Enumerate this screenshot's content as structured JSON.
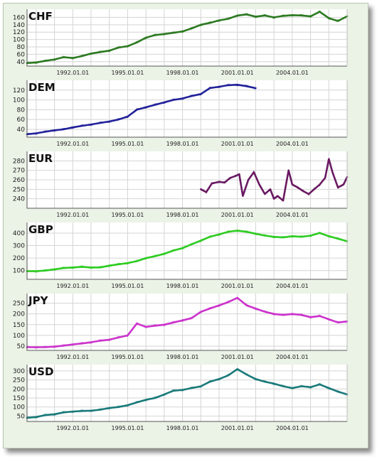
{
  "chart_data": [
    {
      "type": "line",
      "title": "CHF",
      "color": "#2d7a22",
      "x_ticks": [
        "1992.01.01",
        "1995.01.01",
        "1998.01.01",
        "2001.01.01",
        "2004.01.01"
      ],
      "y_ticks": [
        40,
        60,
        80,
        100,
        120,
        140,
        160
      ],
      "ylim": [
        28,
        182
      ],
      "xlim": [
        1989.5,
        2007.0
      ],
      "grid": true,
      "series": [
        {
          "x": [
            1989.5,
            1990.0,
            1990.5,
            1991.0,
            1991.5,
            1992.0,
            1992.5,
            1993.0,
            1993.5,
            1994.0,
            1994.5,
            1995.0,
            1995.5,
            1996.0,
            1996.5,
            1997.0,
            1997.5,
            1998.0,
            1998.5,
            1999.0,
            1999.5,
            2000.0,
            2000.5,
            2001.0,
            2001.5,
            2002.0,
            2002.5,
            2003.0,
            2003.5,
            2004.0,
            2004.5,
            2005.0,
            2005.5,
            2006.0,
            2006.5,
            2007.0
          ],
          "y": [
            36,
            38,
            42,
            46,
            52,
            50,
            55,
            62,
            66,
            70,
            78,
            82,
            92,
            105,
            112,
            115,
            118,
            122,
            130,
            140,
            145,
            152,
            156,
            165,
            168,
            162,
            165,
            160,
            164,
            166,
            165,
            163,
            175,
            158,
            150,
            163
          ]
        }
      ]
    },
    {
      "type": "line",
      "title": "DEM",
      "color": "#22229a",
      "x_ticks": [
        "1992.01.01",
        "1995.01.01",
        "1998.01.01",
        "2001.01.01",
        "2004.01.01"
      ],
      "y_ticks": [
        40,
        60,
        80,
        100,
        120
      ],
      "ylim": [
        24,
        140
      ],
      "xlim": [
        1989.5,
        2007.0
      ],
      "grid": true,
      "series": [
        {
          "x": [
            1989.5,
            1990.0,
            1990.5,
            1991.0,
            1991.5,
            1992.0,
            1992.5,
            1993.0,
            1993.5,
            1994.0,
            1994.5,
            1995.0,
            1995.5,
            1996.0,
            1996.5,
            1997.0,
            1997.5,
            1998.0,
            1998.5,
            1999.0,
            1999.5,
            2000.0,
            2000.5,
            2001.0,
            2001.5,
            2002.0
          ],
          "y": [
            30,
            32,
            35,
            38,
            40,
            44,
            47,
            50,
            53,
            56,
            60,
            66,
            80,
            85,
            90,
            95,
            100,
            103,
            108,
            112,
            124,
            127,
            130,
            131,
            128,
            124
          ]
        }
      ]
    },
    {
      "type": "line",
      "title": "EUR",
      "color": "#6a1a62",
      "x_ticks": [
        "1992.01.01",
        "1995.01.01",
        "1998.01.01",
        "2001.01.01",
        "2004.01.01"
      ],
      "y_ticks": [
        240,
        250,
        260,
        270,
        280
      ],
      "ylim": [
        230,
        290
      ],
      "xlim": [
        1989.5,
        2007.0
      ],
      "grid": true,
      "series": [
        {
          "x": [
            1999.0,
            1999.3,
            1999.6,
            2000.0,
            2000.3,
            2000.6,
            2000.9,
            2001.1,
            2001.3,
            2001.6,
            2001.9,
            2002.2,
            2002.5,
            2002.8,
            2003.0,
            2003.2,
            2003.5,
            2003.8,
            2004.0,
            2004.3,
            2004.6,
            2004.9,
            2005.2,
            2005.5,
            2005.8,
            2006.0,
            2006.2,
            2006.5,
            2006.8,
            2007.0
          ],
          "y": [
            250,
            247,
            256,
            258,
            257,
            262,
            264,
            266,
            243,
            260,
            268,
            255,
            245,
            250,
            240,
            243,
            238,
            270,
            255,
            252,
            248,
            245,
            250,
            255,
            262,
            282,
            268,
            252,
            255,
            263
          ]
        }
      ]
    },
    {
      "type": "line",
      "title": "GBP",
      "color": "#2ecc22",
      "x_ticks": [
        "1992.01.01",
        "1995.01.01",
        "1998.01.01",
        "2001.01.01",
        "2004.01.01"
      ],
      "y_ticks": [
        100,
        200,
        300,
        400
      ],
      "ylim": [
        30,
        485
      ],
      "xlim": [
        1989.5,
        2007.0
      ],
      "grid": true,
      "series": [
        {
          "x": [
            1989.5,
            1990.0,
            1990.5,
            1991.0,
            1991.5,
            1992.0,
            1992.5,
            1993.0,
            1993.5,
            1994.0,
            1994.5,
            1995.0,
            1995.5,
            1996.0,
            1996.5,
            1997.0,
            1997.5,
            1998.0,
            1998.5,
            1999.0,
            1999.5,
            2000.0,
            2000.5,
            2001.0,
            2001.5,
            2002.0,
            2002.5,
            2003.0,
            2003.5,
            2004.0,
            2004.5,
            2005.0,
            2005.5,
            2006.0,
            2006.5,
            2007.0
          ],
          "y": [
            95,
            95,
            100,
            110,
            120,
            125,
            130,
            125,
            125,
            140,
            150,
            160,
            175,
            200,
            215,
            235,
            260,
            280,
            310,
            340,
            370,
            390,
            410,
            420,
            410,
            395,
            380,
            370,
            365,
            375,
            370,
            380,
            400,
            375,
            355,
            335
          ]
        }
      ]
    },
    {
      "type": "line",
      "title": "JPY",
      "color": "#cc33cc",
      "x_ticks": [
        "1992.01.01",
        "1995.01.01",
        "1998.01.01",
        "2001.01.01",
        "2004.01.01"
      ],
      "y_ticks": [
        50,
        100,
        150,
        200,
        250
      ],
      "ylim": [
        30,
        295
      ],
      "xlim": [
        1989.5,
        2007.0
      ],
      "grid": true,
      "series": [
        {
          "x": [
            1989.5,
            1990.0,
            1990.5,
            1991.0,
            1991.5,
            1992.0,
            1992.5,
            1993.0,
            1993.5,
            1994.0,
            1994.5,
            1995.0,
            1995.5,
            1996.0,
            1996.5,
            1997.0,
            1997.5,
            1998.0,
            1998.5,
            1999.0,
            1999.5,
            2000.0,
            2000.5,
            2001.0,
            2001.5,
            2002.0,
            2002.5,
            2003.0,
            2003.5,
            2004.0,
            2004.5,
            2005.0,
            2005.5,
            2006.0,
            2006.5,
            2007.0
          ],
          "y": [
            45,
            45,
            45,
            48,
            52,
            58,
            62,
            68,
            75,
            80,
            90,
            100,
            155,
            140,
            145,
            150,
            160,
            170,
            180,
            210,
            225,
            240,
            255,
            275,
            240,
            225,
            210,
            200,
            195,
            200,
            195,
            185,
            190,
            175,
            160,
            165
          ]
        }
      ]
    },
    {
      "type": "line",
      "title": "USD",
      "color": "#1a7a7a",
      "x_ticks": [
        "1992.01.01",
        "1995.01.01",
        "1998.01.01",
        "2001.01.01",
        "2004.01.01"
      ],
      "y_ticks": [
        50,
        100,
        150,
        200,
        250,
        300
      ],
      "ylim": [
        20,
        335
      ],
      "xlim": [
        1989.5,
        2007.0
      ],
      "grid": true,
      "series": [
        {
          "x": [
            1989.5,
            1990.0,
            1990.5,
            1991.0,
            1991.5,
            1992.0,
            1992.5,
            1993.0,
            1993.5,
            1994.0,
            1994.5,
            1995.0,
            1995.5,
            1996.0,
            1996.5,
            1997.0,
            1997.5,
            1998.0,
            1998.5,
            1999.0,
            1999.5,
            2000.0,
            2000.5,
            2001.0,
            2001.5,
            2002.0,
            2002.5,
            2003.0,
            2003.5,
            2004.0,
            2004.5,
            2005.0,
            2005.5,
            2006.0,
            2006.5,
            2007.0
          ],
          "y": [
            40,
            45,
            55,
            60,
            70,
            75,
            78,
            80,
            85,
            95,
            100,
            110,
            125,
            140,
            150,
            170,
            190,
            195,
            205,
            215,
            240,
            255,
            275,
            310,
            280,
            255,
            240,
            230,
            215,
            205,
            215,
            210,
            225,
            205,
            185,
            170
          ]
        }
      ]
    }
  ]
}
